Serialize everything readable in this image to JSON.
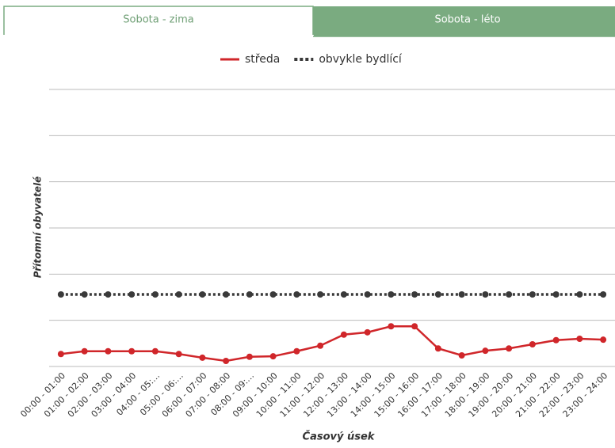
{
  "tabs": [
    {
      "label": "Sobota - zima",
      "active": true
    },
    {
      "label": "Sobota - léto",
      "active": false
    }
  ],
  "chart_data": {
    "type": "line",
    "ylabel": "Přítomní obyvatelé",
    "xlabel": "Časový úsek",
    "categories": [
      "00:00 - 01:00",
      "01:00 - 02:00",
      "02:00 - 03:00",
      "03:00 - 04:00",
      "04:00 - 05:…",
      "05:00 - 06:…",
      "06:00 - 07:00",
      "07:00 - 08:00",
      "08:00 - 09:…",
      "09:00 - 10:00",
      "10:00 - 11:00",
      "11:00 - 12:00",
      "12:00 - 13:00",
      "13:00 - 14:00",
      "14:00 - 15:00",
      "15:00 - 16:00",
      "16:00 - 17:00",
      "17:00 - 18:00",
      "18:00 - 19:00",
      "19:00 - 20:00",
      "20:00 - 21:00",
      "21:00 - 22:00",
      "22:00 - 23:00",
      "23:00 - 24:00"
    ],
    "series": [
      {
        "name": "středa",
        "color": "#d0262a",
        "style": "solid",
        "values": [
          0.27,
          0.33,
          0.33,
          0.33,
          0.33,
          0.27,
          0.19,
          0.12,
          0.21,
          0.22,
          0.33,
          0.45,
          0.69,
          0.74,
          0.87,
          0.87,
          0.39,
          0.24,
          0.34,
          0.39,
          0.48,
          0.57,
          0.6,
          0.58
        ]
      },
      {
        "name": "obvykle bydlící",
        "color": "#3a3a3a",
        "style": "dotted",
        "values": [
          1.56,
          1.56,
          1.56,
          1.56,
          1.56,
          1.56,
          1.56,
          1.56,
          1.56,
          1.56,
          1.56,
          1.56,
          1.56,
          1.56,
          1.56,
          1.56,
          1.56,
          1.56,
          1.56,
          1.56,
          1.56,
          1.56,
          1.56,
          1.56
        ]
      }
    ],
    "ylim": [
      0,
      6
    ],
    "yticks": [
      0,
      1,
      2,
      3,
      4,
      5,
      6
    ],
    "grid": true,
    "legend": "top"
  }
}
